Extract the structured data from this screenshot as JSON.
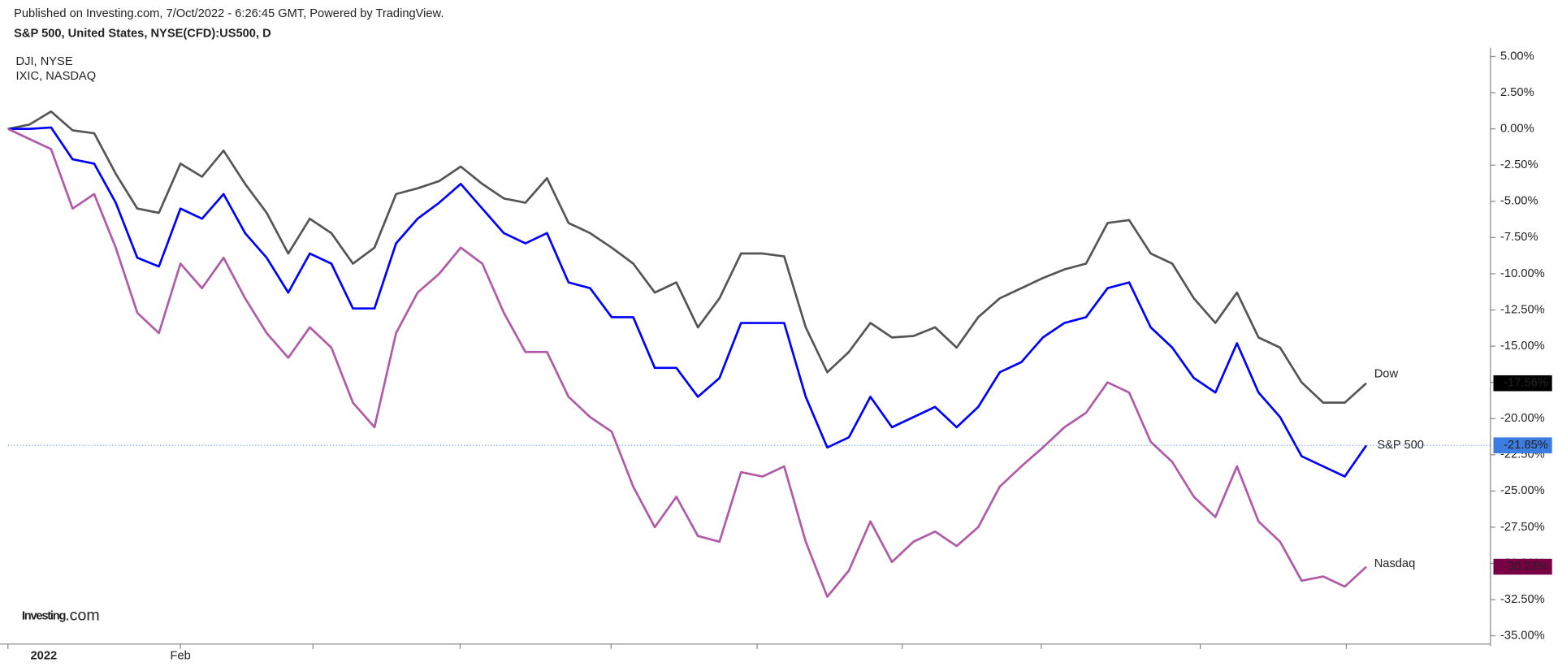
{
  "header": "Published on Investing.com, 7/Oct/2022 - 6:26:45 GMT, Powered by TradingView.",
  "chart_data": {
    "type": "line",
    "title": "S&P 500, United States, NYSE(CFD):US500, D",
    "legend_text": [
      "DJI, NYSE",
      "IXIC, NASDAQ"
    ],
    "logo": "Investing",
    "logo_suffix": ".com",
    "categories": [
      "2022",
      null,
      null,
      null,
      null,
      null,
      null,
      null,
      "Feb",
      null,
      null,
      null,
      null,
      null,
      null,
      null,
      null,
      null,
      null,
      null,
      null,
      null,
      null,
      null,
      null,
      null,
      null,
      null,
      null,
      null,
      null,
      null,
      null,
      null,
      null,
      null,
      null,
      null,
      null,
      null,
      null,
      null,
      null,
      null,
      null,
      null,
      null,
      null,
      null,
      null,
      null,
      null,
      null,
      null,
      null,
      null,
      null,
      null,
      null,
      null,
      null,
      null,
      null,
      null
    ],
    "ylim": [
      -35.5,
      5.6
    ],
    "yticks": [
      {
        "value": 5,
        "label": "5.00%"
      },
      {
        "value": 2.5,
        "label": "2.50%"
      },
      {
        "value": 0,
        "label": "0.00%"
      },
      {
        "value": -2.5,
        "label": "-2.50%"
      },
      {
        "value": -5,
        "label": "-5.00%"
      },
      {
        "value": -7.5,
        "label": "-7.50%"
      },
      {
        "value": -10,
        "label": "-10.00%"
      },
      {
        "value": -12.5,
        "label": "-12.50%"
      },
      {
        "value": -15,
        "label": "-15.00%"
      },
      {
        "value": -17.5,
        "label": "-17.50%"
      },
      {
        "value": -20,
        "label": "-20.00%"
      },
      {
        "value": -22.5,
        "label": "-22.50%"
      },
      {
        "value": -25,
        "label": "-25.00%"
      },
      {
        "value": -27.5,
        "label": "-27.50%"
      },
      {
        "value": -30,
        "label": "-30.00%"
      },
      {
        "value": -32.5,
        "label": "-32.50%"
      },
      {
        "value": -35,
        "label": "-35.00%"
      }
    ],
    "series": [
      {
        "name": "Dow",
        "color": "#555555",
        "tag_color": "#000000",
        "values": [
          0,
          0.3,
          1.2,
          -0.1,
          -0.3,
          -3.1,
          -5.5,
          -5.8,
          -2.4,
          -3.3,
          -1.5,
          -3.8,
          -5.8,
          -8.6,
          -6.2,
          -7.2,
          -9.3,
          -8.2,
          -4.5,
          -4.1,
          -3.6,
          -2.6,
          -3.8,
          -4.8,
          -5.1,
          -3.4,
          -6.5,
          -7.2,
          -8.2,
          -9.3,
          -11.3,
          -10.6,
          -13.7,
          -11.7,
          -8.6,
          -8.6,
          -8.8,
          -13.7,
          -16.8,
          -15.4,
          -13.4,
          -14.4,
          -14.3,
          -13.7,
          -15.1,
          -13.0,
          -11.7,
          -11.0,
          -10.3,
          -9.7,
          -9.3,
          -6.5,
          -6.3,
          -8.6,
          -9.3,
          -11.7,
          -13.4,
          -11.3,
          -14.4,
          -15.1,
          -17.5,
          -18.9,
          -18.9,
          -17.56
        ],
        "value_labels": [
          null,
          null,
          null,
          null,
          null,
          null,
          null,
          null,
          null,
          null,
          null,
          null,
          null,
          null,
          null,
          null,
          null,
          null,
          null,
          null,
          null,
          null,
          null,
          null,
          null,
          null,
          null,
          null,
          null,
          null,
          null,
          null,
          null,
          null,
          null,
          null,
          null,
          null,
          null,
          null,
          null,
          null,
          null,
          null,
          null,
          null,
          null,
          null,
          null,
          null,
          null,
          null,
          null,
          null,
          null,
          null,
          null,
          null,
          null,
          null,
          null,
          null,
          null,
          "-17.56%"
        ]
      },
      {
        "name": "S&P 500",
        "color": "#0000ff",
        "tag_color": "#3d7ce0",
        "values": [
          0,
          0,
          0.1,
          -2.1,
          -2.4,
          -5.1,
          -8.9,
          -9.5,
          -5.5,
          -6.2,
          -4.5,
          -7.2,
          -8.9,
          -11.3,
          -8.6,
          -9.3,
          -12.4,
          -12.4,
          -7.9,
          -6.2,
          -5.1,
          -3.8,
          -5.5,
          -7.2,
          -7.9,
          -7.2,
          -10.6,
          -11.0,
          -13.0,
          -13.0,
          -16.5,
          -16.5,
          -18.5,
          -17.2,
          -13.4,
          -13.4,
          -13.4,
          -18.5,
          -22.0,
          -21.3,
          -18.5,
          -20.6,
          -19.9,
          -19.2,
          -20.6,
          -19.2,
          -16.8,
          -16.1,
          -14.4,
          -13.4,
          -13.0,
          -11.0,
          -10.6,
          -13.7,
          -15.1,
          -17.2,
          -18.2,
          -14.8,
          -18.2,
          -19.9,
          -22.6,
          -23.3,
          -24.0,
          -21.85
        ],
        "value_labels": [
          null,
          null,
          null,
          null,
          null,
          null,
          null,
          null,
          null,
          null,
          null,
          null,
          null,
          null,
          null,
          null,
          null,
          null,
          null,
          null,
          null,
          null,
          null,
          null,
          null,
          null,
          null,
          null,
          null,
          null,
          null,
          null,
          null,
          null,
          null,
          null,
          null,
          null,
          null,
          null,
          null,
          null,
          null,
          null,
          null,
          null,
          null,
          null,
          null,
          null,
          null,
          null,
          null,
          null,
          null,
          null,
          null,
          null,
          null,
          null,
          null,
          null,
          null,
          "-21.85%"
        ]
      },
      {
        "name": "Nasdaq",
        "color": "#b05aa8",
        "tag_color": "#7a0046",
        "values": [
          0,
          -0.7,
          -1.4,
          -5.5,
          -4.5,
          -8.2,
          -12.7,
          -14.1,
          -9.3,
          -11.0,
          -8.9,
          -11.7,
          -14.1,
          -15.8,
          -13.7,
          -15.1,
          -18.9,
          -20.6,
          -14.1,
          -11.3,
          -10.0,
          -8.2,
          -9.3,
          -12.7,
          -15.4,
          -15.4,
          -18.5,
          -19.9,
          -20.9,
          -24.7,
          -27.5,
          -25.4,
          -28.1,
          -28.5,
          -23.7,
          -24.0,
          -23.3,
          -28.5,
          -32.3,
          -30.5,
          -27.1,
          -29.9,
          -28.5,
          -27.8,
          -28.8,
          -27.5,
          -24.7,
          -23.3,
          -22.0,
          -20.6,
          -19.6,
          -17.5,
          -18.2,
          -21.6,
          -23.0,
          -25.4,
          -26.8,
          -23.3,
          -27.1,
          -28.5,
          -31.2,
          -30.9,
          -31.6,
          -30.23
        ],
        "value_labels": [
          null,
          null,
          null,
          null,
          null,
          null,
          null,
          null,
          null,
          null,
          null,
          null,
          null,
          null,
          null,
          null,
          null,
          null,
          null,
          null,
          null,
          null,
          null,
          null,
          null,
          null,
          null,
          null,
          null,
          null,
          null,
          null,
          null,
          null,
          null,
          null,
          null,
          null,
          null,
          null,
          null,
          null,
          null,
          null,
          null,
          null,
          null,
          null,
          null,
          null,
          null,
          null,
          null,
          null,
          null,
          null,
          null,
          null,
          null,
          null,
          null,
          null,
          null,
          "-30.23%"
        ]
      }
    ],
    "annotation_color": "#ff0000"
  }
}
